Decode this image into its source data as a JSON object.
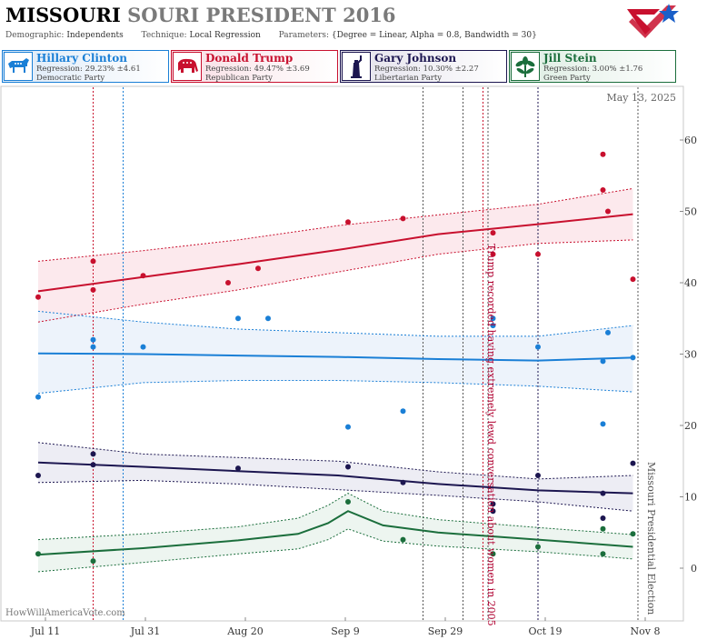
{
  "header": {
    "title_main": "MISSOURI",
    "title_sub": "SOURI PRESIDENT 2016",
    "demographic_label": "Demographic:",
    "demographic_value": "Independents",
    "technique_label": "Technique:",
    "technique_value": "Local Regression",
    "parameters_label": "Parameters:",
    "parameters_value": "{Degree = Linear, Alpha = 0.8, Bandwidth = 30}"
  },
  "candidates": [
    {
      "name": "Hillary Clinton",
      "regression": "Regression: 29.23% ±4.61",
      "party": "Democratic Party",
      "color": "#1a7fd6",
      "icon": "donkey-icon"
    },
    {
      "name": "Donald Trump",
      "regression": "Regression: 49.47% ±3.69",
      "party": "Republican Party",
      "color": "#c8102e",
      "icon": "elephant-icon"
    },
    {
      "name": "Gary Johnson",
      "regression": "Regression: 10.30% ±2.27",
      "party": "Libertarian Party",
      "color": "#1c1650",
      "icon": "statue-of-liberty-icon"
    },
    {
      "name": "Jill Stein",
      "regression": "Regression: 3.00% ±1.76",
      "party": "Green Party",
      "color": "#1b6e3c",
      "icon": "flower-icon"
    }
  ],
  "chart_data": {
    "type": "scatter",
    "date_stamp": "May 13, 2025",
    "watermark": "HowWillAmericaVote.com",
    "x_tick_labels": [
      "Jul 11",
      "Jul 31",
      "Aug 20",
      "Sep 9",
      "Sep 29",
      "Oct 19",
      "Nov 8"
    ],
    "x_tick_dates": [
      "2016-07-11",
      "2016-07-31",
      "2016-08-20",
      "2016-09-09",
      "2016-09-29",
      "2016-10-19",
      "2016-11-08"
    ],
    "xlim": [
      "2016-07-11",
      "2016-11-10"
    ],
    "y_ticks": [
      0,
      10,
      20,
      30,
      40,
      50,
      60
    ],
    "ylim": [
      -8,
      70
    ],
    "grid": false,
    "annotations": [
      {
        "date": "2016-10-07",
        "text": "Trump recorded having extremely lewd conversation about women in 2005"
      },
      {
        "date": "2016-11-08",
        "text": "Missouri Presidential Election"
      }
    ],
    "event_lines": [
      {
        "date": "2016-07-28",
        "color": "#1a7fd6"
      },
      {
        "date": "2016-07-22",
        "color": "#c8102e"
      },
      {
        "date": "2016-09-26",
        "color": "#555555"
      },
      {
        "date": "2016-10-04",
        "color": "#555555"
      },
      {
        "date": "2016-10-08",
        "color": "#c8102e"
      },
      {
        "date": "2016-10-09",
        "color": "#555555"
      },
      {
        "date": "2016-10-19",
        "color": "#1c1650"
      },
      {
        "date": "2016-11-08",
        "color": "#555555"
      }
    ],
    "series": [
      {
        "name": "Donald Trump",
        "color": "#c8102e",
        "band_fill": "#fbe3e8",
        "points": [
          [
            "2016-07-11",
            38
          ],
          [
            "2016-07-22",
            43
          ],
          [
            "2016-07-22",
            39
          ],
          [
            "2016-08-01",
            41
          ],
          [
            "2016-08-18",
            40
          ],
          [
            "2016-08-24",
            42
          ],
          [
            "2016-09-11",
            48.5
          ],
          [
            "2016-09-22",
            49
          ],
          [
            "2016-10-10",
            47
          ],
          [
            "2016-10-10",
            44
          ],
          [
            "2016-10-19",
            44
          ],
          [
            "2016-11-01",
            58
          ],
          [
            "2016-11-01",
            53
          ],
          [
            "2016-11-02",
            50
          ],
          [
            "2016-11-07",
            40.5
          ]
        ],
        "trend": [
          [
            "2016-07-11",
            38.8
          ],
          [
            "2016-08-01",
            40.8
          ],
          [
            "2016-08-20",
            42.6
          ],
          [
            "2016-09-09",
            44.6
          ],
          [
            "2016-09-29",
            46.8
          ],
          [
            "2016-10-19",
            48.2
          ],
          [
            "2016-11-07",
            49.6
          ]
        ],
        "upper": [
          [
            "2016-07-11",
            43
          ],
          [
            "2016-08-01",
            44.5
          ],
          [
            "2016-08-20",
            46
          ],
          [
            "2016-09-09",
            48
          ],
          [
            "2016-09-29",
            49.5
          ],
          [
            "2016-10-19",
            51
          ],
          [
            "2016-11-07",
            53.2
          ]
        ],
        "lower": [
          [
            "2016-07-11",
            34.5
          ],
          [
            "2016-08-01",
            37
          ],
          [
            "2016-08-20",
            39
          ],
          [
            "2016-09-09",
            41.5
          ],
          [
            "2016-09-29",
            44
          ],
          [
            "2016-10-19",
            45.5
          ],
          [
            "2016-11-07",
            46
          ]
        ]
      },
      {
        "name": "Hillary Clinton",
        "color": "#1a7fd6",
        "band_fill": "#e8f0fa",
        "points": [
          [
            "2016-07-11",
            24
          ],
          [
            "2016-07-22",
            32
          ],
          [
            "2016-07-22",
            31
          ],
          [
            "2016-08-01",
            31
          ],
          [
            "2016-08-20",
            35
          ],
          [
            "2016-08-26",
            35
          ],
          [
            "2016-09-11",
            19.8
          ],
          [
            "2016-09-22",
            22
          ],
          [
            "2016-10-10",
            35
          ],
          [
            "2016-10-10",
            34
          ],
          [
            "2016-10-19",
            31
          ],
          [
            "2016-11-01",
            20.2
          ],
          [
            "2016-11-01",
            29
          ],
          [
            "2016-11-02",
            33
          ],
          [
            "2016-11-07",
            29.5
          ]
        ],
        "trend": [
          [
            "2016-07-11",
            30.1
          ],
          [
            "2016-08-01",
            30
          ],
          [
            "2016-08-20",
            29.8
          ],
          [
            "2016-09-09",
            29.6
          ],
          [
            "2016-09-29",
            29.3
          ],
          [
            "2016-10-19",
            29.1
          ],
          [
            "2016-11-07",
            29.5
          ]
        ],
        "upper": [
          [
            "2016-07-11",
            36
          ],
          [
            "2016-08-01",
            34.5
          ],
          [
            "2016-08-20",
            33.5
          ],
          [
            "2016-09-09",
            33
          ],
          [
            "2016-09-29",
            32.5
          ],
          [
            "2016-10-19",
            32.5
          ],
          [
            "2016-11-07",
            34
          ]
        ],
        "lower": [
          [
            "2016-07-11",
            24.5
          ],
          [
            "2016-08-01",
            26
          ],
          [
            "2016-08-20",
            26.3
          ],
          [
            "2016-09-09",
            26.3
          ],
          [
            "2016-09-29",
            26
          ],
          [
            "2016-10-19",
            25.5
          ],
          [
            "2016-11-07",
            24.7
          ]
        ]
      },
      {
        "name": "Gary Johnson",
        "color": "#1c1650",
        "band_fill": "#e9e8f1",
        "points": [
          [
            "2016-07-11",
            13
          ],
          [
            "2016-07-22",
            16
          ],
          [
            "2016-07-22",
            14.5
          ],
          [
            "2016-08-20",
            14
          ],
          [
            "2016-09-11",
            14.2
          ],
          [
            "2016-09-22",
            12
          ],
          [
            "2016-10-10",
            9
          ],
          [
            "2016-10-10",
            8
          ],
          [
            "2016-10-19",
            13
          ],
          [
            "2016-11-01",
            10.5
          ],
          [
            "2016-11-01",
            7
          ],
          [
            "2016-11-07",
            14.7
          ]
        ],
        "trend": [
          [
            "2016-07-11",
            14.8
          ],
          [
            "2016-08-01",
            14.2
          ],
          [
            "2016-08-20",
            13.6
          ],
          [
            "2016-09-09",
            13
          ],
          [
            "2016-09-29",
            11.8
          ],
          [
            "2016-10-19",
            10.9
          ],
          [
            "2016-11-07",
            10.5
          ]
        ],
        "upper": [
          [
            "2016-07-11",
            17.6
          ],
          [
            "2016-08-01",
            16
          ],
          [
            "2016-08-20",
            15.5
          ],
          [
            "2016-09-09",
            15
          ],
          [
            "2016-09-29",
            13.5
          ],
          [
            "2016-10-19",
            12.5
          ],
          [
            "2016-11-07",
            13
          ]
        ],
        "lower": [
          [
            "2016-07-11",
            12
          ],
          [
            "2016-08-01",
            12.3
          ],
          [
            "2016-08-20",
            11.8
          ],
          [
            "2016-09-09",
            11
          ],
          [
            "2016-09-29",
            10.2
          ],
          [
            "2016-10-19",
            9.3
          ],
          [
            "2016-11-07",
            8
          ]
        ]
      },
      {
        "name": "Jill Stein",
        "color": "#1b6e3c",
        "band_fill": "#e8f3ec",
        "points": [
          [
            "2016-07-11",
            2
          ],
          [
            "2016-07-22",
            1
          ],
          [
            "2016-09-11",
            9.3
          ],
          [
            "2016-09-22",
            4
          ],
          [
            "2016-10-10",
            2
          ],
          [
            "2016-10-19",
            3
          ],
          [
            "2016-11-01",
            5.5
          ],
          [
            "2016-11-01",
            2
          ],
          [
            "2016-11-07",
            4.8
          ]
        ],
        "trend": [
          [
            "2016-07-11",
            1.9
          ],
          [
            "2016-08-01",
            2.8
          ],
          [
            "2016-08-20",
            3.9
          ],
          [
            "2016-09-01",
            4.8
          ],
          [
            "2016-09-07",
            6.3
          ],
          [
            "2016-09-11",
            8
          ],
          [
            "2016-09-18",
            6
          ],
          [
            "2016-09-29",
            5
          ],
          [
            "2016-10-19",
            4
          ],
          [
            "2016-11-07",
            3
          ]
        ],
        "upper": [
          [
            "2016-07-11",
            4
          ],
          [
            "2016-08-01",
            4.8
          ],
          [
            "2016-08-20",
            5.8
          ],
          [
            "2016-09-01",
            7
          ],
          [
            "2016-09-07",
            8.8
          ],
          [
            "2016-09-11",
            10.5
          ],
          [
            "2016-09-18",
            8
          ],
          [
            "2016-09-29",
            6.8
          ],
          [
            "2016-10-19",
            5.7
          ],
          [
            "2016-11-07",
            4.7
          ]
        ],
        "lower": [
          [
            "2016-07-11",
            -0.5
          ],
          [
            "2016-08-01",
            0.8
          ],
          [
            "2016-08-20",
            2
          ],
          [
            "2016-09-01",
            2.7
          ],
          [
            "2016-09-07",
            4
          ],
          [
            "2016-09-11",
            5.5
          ],
          [
            "2016-09-18",
            3.8
          ],
          [
            "2016-09-29",
            3.1
          ],
          [
            "2016-10-19",
            2.3
          ],
          [
            "2016-11-07",
            1.3
          ]
        ]
      }
    ]
  }
}
